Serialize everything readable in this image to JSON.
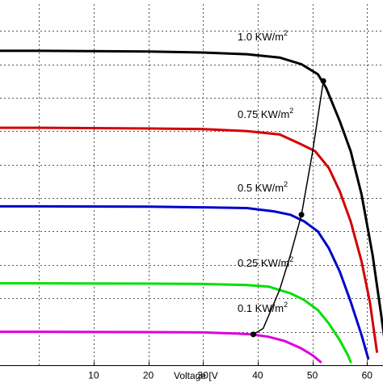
{
  "chart_data": {
    "type": "line",
    "xlabel": "Voltage [V",
    "xlim": [
      -8,
      63.5
    ],
    "ylim": [
      0,
      10.8
    ],
    "x_ticks": [
      10,
      20,
      30,
      40,
      50,
      60
    ],
    "grid": true,
    "series": [
      {
        "name": "1.0 KW/m2",
        "label_main": "1.0 KW/m",
        "label_sup": "2",
        "color": "#000000",
        "points": [
          [
            -8,
            9.4
          ],
          [
            0,
            9.4
          ],
          [
            20,
            9.38
          ],
          [
            30,
            9.35
          ],
          [
            38,
            9.3
          ],
          [
            44,
            9.2
          ],
          [
            48,
            9.0
          ],
          [
            51,
            8.7
          ],
          [
            52.5,
            8.3
          ],
          [
            55,
            7.3
          ],
          [
            57,
            6.4
          ],
          [
            59,
            5.1
          ],
          [
            61,
            3.3
          ],
          [
            62.5,
            1.6
          ],
          [
            63.5,
            0.4
          ]
        ]
      },
      {
        "name": "0.75 KW/m2",
        "label_main": "0.75 KW/m",
        "label_sup": "2",
        "color": "#d40000",
        "points": [
          [
            -8,
            7.1
          ],
          [
            0,
            7.1
          ],
          [
            20,
            7.08
          ],
          [
            30,
            7.06
          ],
          [
            38,
            7.0
          ],
          [
            44,
            6.9
          ],
          [
            48,
            6.6
          ],
          [
            50.5,
            6.4
          ],
          [
            53,
            5.9
          ],
          [
            55,
            5.2
          ],
          [
            57,
            4.3
          ],
          [
            59,
            3.1
          ],
          [
            60.5,
            1.9
          ],
          [
            61.8,
            0.4
          ]
        ]
      },
      {
        "name": "0.5 KW/m2",
        "label_main": "0.5 KW/m",
        "label_sup": "2",
        "color": "#0000cc",
        "points": [
          [
            -8,
            4.75
          ],
          [
            0,
            4.75
          ],
          [
            20,
            4.74
          ],
          [
            30,
            4.72
          ],
          [
            38,
            4.7
          ],
          [
            43,
            4.6
          ],
          [
            46,
            4.5
          ],
          [
            48.5,
            4.3
          ],
          [
            51,
            4.0
          ],
          [
            53,
            3.5
          ],
          [
            55,
            2.8
          ],
          [
            57,
            1.9
          ],
          [
            59,
            0.9
          ],
          [
            60.2,
            0.2
          ]
        ]
      },
      {
        "name": "0.25 KW/m2",
        "label_main": "0.25 KW/m",
        "label_sup": "2",
        "color": "#00e000",
        "points": [
          [
            -8,
            2.45
          ],
          [
            0,
            2.45
          ],
          [
            20,
            2.44
          ],
          [
            30,
            2.43
          ],
          [
            38,
            2.4
          ],
          [
            42,
            2.35
          ],
          [
            44,
            2.25
          ],
          [
            46,
            2.15
          ],
          [
            48.5,
            1.95
          ],
          [
            51,
            1.65
          ],
          [
            53,
            1.25
          ],
          [
            55,
            0.75
          ],
          [
            56.5,
            0.3
          ],
          [
            57,
            0.1
          ]
        ]
      },
      {
        "name": "0.1 KW/m2",
        "label_main": "0.1 KW/m",
        "label_sup": "2",
        "color": "#dd00dd",
        "points": [
          [
            -8,
            1.0
          ],
          [
            0,
            1.0
          ],
          [
            20,
            0.99
          ],
          [
            30,
            0.98
          ],
          [
            36,
            0.95
          ],
          [
            39,
            0.92
          ],
          [
            42,
            0.85
          ],
          [
            45,
            0.72
          ],
          [
            48,
            0.5
          ],
          [
            50,
            0.3
          ],
          [
            51.5,
            0.1
          ]
        ]
      }
    ],
    "mpp_curve": {
      "color": "#000000",
      "points": [
        [
          39.2,
          0.92
        ],
        [
          41,
          1.1
        ],
        [
          44,
          2.25
        ],
        [
          46,
          3.3
        ],
        [
          48,
          4.5
        ],
        [
          50,
          6.35
        ],
        [
          52,
          8.5
        ]
      ]
    },
    "mpp_markers": [
      [
        39.2,
        0.92
      ],
      [
        48,
        4.5
      ],
      [
        52,
        8.5
      ]
    ]
  }
}
